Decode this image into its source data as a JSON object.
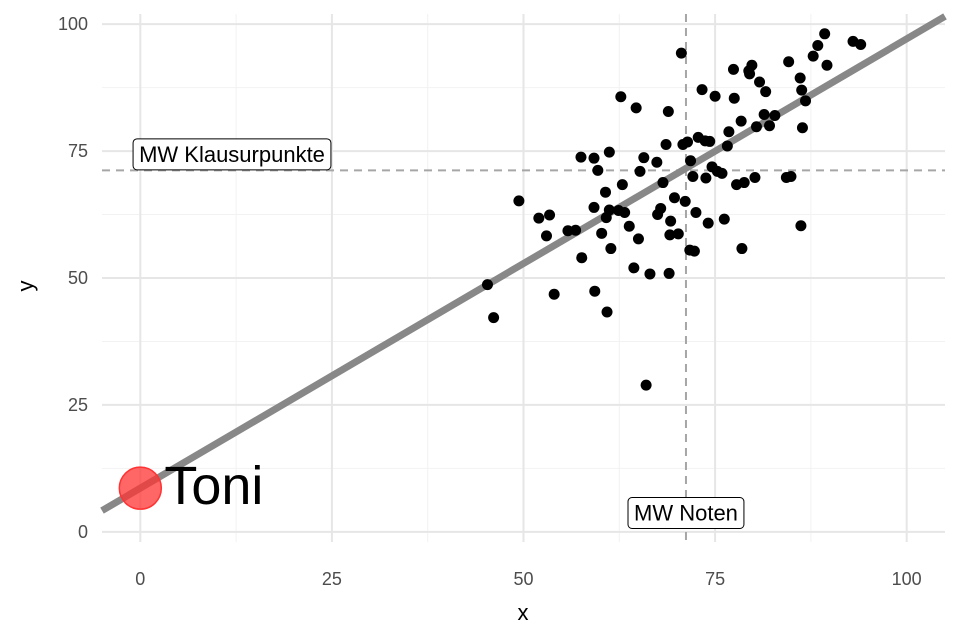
{
  "chart_data": {
    "type": "scatter",
    "title": "",
    "xlabel": "x",
    "ylabel": "y",
    "xlim": [
      -5,
      105
    ],
    "ylim": [
      -2,
      102
    ],
    "x_ticks": [
      0,
      25,
      50,
      75,
      100
    ],
    "y_ticks": [
      0,
      25,
      50,
      75,
      100
    ],
    "x_tick_labels": [
      "0",
      "25",
      "50",
      "75",
      "100"
    ],
    "y_tick_labels": [
      "0",
      "25",
      "50",
      "75",
      "100"
    ],
    "grid": true,
    "regression_line": {
      "intercept": 8.6,
      "slope": 0.885,
      "color": "#888888"
    },
    "mean_x": 71.2,
    "mean_y": 71.2,
    "mean_x_label": "MW Noten",
    "mean_y_label": "MW Klausurpunkte",
    "highlight_point": {
      "x": 0,
      "y": 8.6,
      "label": "Toni",
      "color": "#ff3333"
    },
    "point_color": "#000000",
    "points": [
      [
        45.3,
        48.7
      ],
      [
        46.1,
        42.2
      ],
      [
        49.4,
        65.2
      ],
      [
        52.0,
        61.8
      ],
      [
        53.0,
        58.3
      ],
      [
        53.4,
        62.4
      ],
      [
        54.0,
        46.8
      ],
      [
        55.8,
        59.3
      ],
      [
        56.8,
        59.4
      ],
      [
        57.5,
        73.8
      ],
      [
        57.6,
        54.0
      ],
      [
        59.2,
        63.9
      ],
      [
        59.2,
        73.6
      ],
      [
        59.3,
        47.4
      ],
      [
        59.7,
        71.2
      ],
      [
        60.2,
        58.8
      ],
      [
        60.7,
        66.9
      ],
      [
        60.8,
        61.9
      ],
      [
        60.9,
        43.3
      ],
      [
        61.2,
        74.8
      ],
      [
        61.2,
        63.4
      ],
      [
        61.4,
        55.8
      ],
      [
        62.4,
        63.3
      ],
      [
        62.7,
        85.7
      ],
      [
        62.9,
        68.4
      ],
      [
        63.2,
        62.9
      ],
      [
        63.8,
        60.2
      ],
      [
        64.4,
        52.0
      ],
      [
        64.7,
        83.5
      ],
      [
        65.0,
        57.7
      ],
      [
        65.2,
        71.0
      ],
      [
        65.7,
        73.7
      ],
      [
        66.0,
        28.9
      ],
      [
        66.5,
        50.8
      ],
      [
        67.4,
        72.8
      ],
      [
        67.5,
        62.5
      ],
      [
        67.9,
        63.7
      ],
      [
        68.2,
        68.8
      ],
      [
        68.6,
        76.3
      ],
      [
        68.9,
        82.8
      ],
      [
        69.0,
        50.9
      ],
      [
        69.1,
        58.5
      ],
      [
        69.2,
        61.2
      ],
      [
        69.7,
        65.8
      ],
      [
        70.2,
        58.7
      ],
      [
        70.6,
        94.3
      ],
      [
        70.8,
        76.3
      ],
      [
        71.1,
        65.1
      ],
      [
        71.4,
        76.8
      ],
      [
        71.7,
        55.5
      ],
      [
        71.8,
        73.1
      ],
      [
        72.1,
        70.0
      ],
      [
        72.3,
        55.3
      ],
      [
        72.5,
        62.9
      ],
      [
        72.8,
        77.7
      ],
      [
        73.3,
        87.1
      ],
      [
        73.7,
        77.0
      ],
      [
        73.8,
        69.7
      ],
      [
        74.1,
        60.8
      ],
      [
        74.3,
        76.9
      ],
      [
        74.6,
        71.9
      ],
      [
        75.0,
        85.8
      ],
      [
        75.3,
        71.0
      ],
      [
        75.9,
        70.6
      ],
      [
        76.2,
        61.6
      ],
      [
        76.6,
        76.0
      ],
      [
        76.8,
        78.8
      ],
      [
        77.4,
        91.1
      ],
      [
        77.5,
        85.4
      ],
      [
        77.8,
        68.4
      ],
      [
        78.4,
        80.9
      ],
      [
        78.5,
        55.8
      ],
      [
        78.8,
        68.8
      ],
      [
        79.4,
        90.8
      ],
      [
        79.5,
        90.2
      ],
      [
        79.8,
        91.9
      ],
      [
        80.2,
        69.8
      ],
      [
        80.4,
        79.8
      ],
      [
        80.8,
        88.6
      ],
      [
        81.4,
        82.2
      ],
      [
        81.6,
        86.7
      ],
      [
        82.1,
        80.0
      ],
      [
        82.8,
        82.0
      ],
      [
        84.3,
        69.8
      ],
      [
        84.6,
        92.6
      ],
      [
        84.9,
        70.0
      ],
      [
        86.1,
        89.4
      ],
      [
        86.2,
        60.3
      ],
      [
        86.3,
        87.0
      ],
      [
        86.4,
        79.6
      ],
      [
        86.8,
        84.9
      ],
      [
        87.8,
        93.7
      ],
      [
        88.4,
        95.8
      ],
      [
        89.3,
        98.1
      ],
      [
        89.6,
        91.9
      ],
      [
        93.0,
        96.6
      ],
      [
        94.0,
        96.0
      ]
    ]
  }
}
